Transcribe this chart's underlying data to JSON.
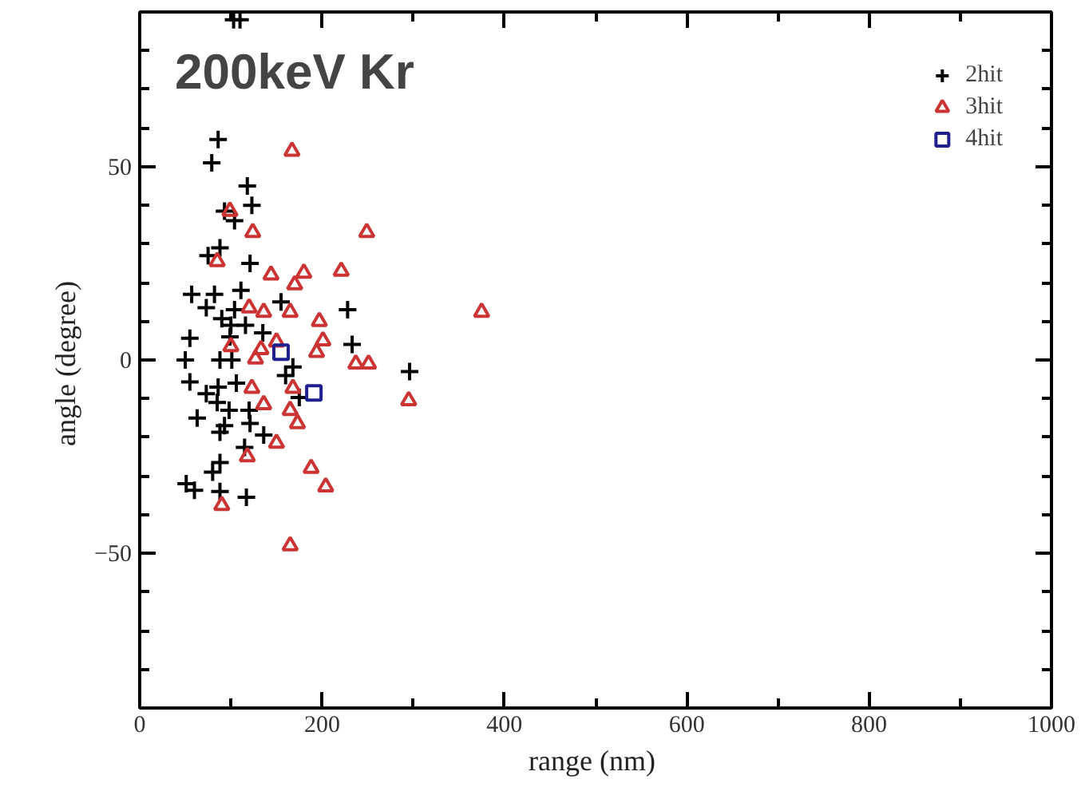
{
  "chart_data": {
    "type": "scatter",
    "title": "200keV Kr",
    "xlabel": "range  (nm)",
    "ylabel": "angle  (degree)",
    "xlim": [
      0,
      1000
    ],
    "ylim": [
      -90,
      90
    ],
    "xticks": [
      0,
      {
        "value": 100,
        "label": null
      },
      200,
      {
        "value": 300,
        "label": null
      },
      400,
      {
        "value": 500,
        "label": null
      },
      600,
      {
        "value": 700,
        "label": null
      },
      800,
      {
        "value": 900,
        "label": null
      },
      1000
    ],
    "yticks": [
      {
        "value": -80,
        "label": null
      },
      {
        "value": -70,
        "label": null
      },
      {
        "value": -60,
        "label": null
      },
      {
        "value": -50,
        "label": "−50"
      },
      {
        "value": -40,
        "label": null
      },
      {
        "value": -30,
        "label": null
      },
      {
        "value": -20,
        "label": null
      },
      {
        "value": -10,
        "label": null
      },
      0,
      {
        "value": 10,
        "label": null
      },
      {
        "value": 20,
        "label": null
      },
      {
        "value": 30,
        "label": null
      },
      {
        "value": 40,
        "label": null
      },
      50,
      {
        "value": 60,
        "label": null
      },
      {
        "value": 70,
        "label": null
      },
      {
        "value": 80,
        "label": null
      }
    ],
    "grid": false,
    "legend": "top right",
    "series": [
      {
        "name": "2hit",
        "color": "#000000",
        "marker": "cross",
        "x": [
          103,
          110,
          86,
          79,
          118,
          123,
          93,
          104,
          88,
          75,
          121,
          57,
          82,
          111,
          155,
          228,
          73,
          104,
          90,
          100,
          116,
          135,
          99,
          55,
          233,
          50,
          88,
          101,
          168,
          296,
          160,
          55,
          106,
          86,
          73,
          175,
          85,
          98,
          120,
          63,
          93,
          121,
          88,
          136,
          115,
          88,
          80,
          51,
          60,
          88,
          117
        ],
        "values": [
          88,
          88,
          57,
          51,
          45,
          40,
          38.5,
          36,
          29,
          27,
          25,
          17,
          17,
          18,
          15,
          13,
          13.5,
          13,
          10.7,
          9,
          9,
          7,
          6,
          5.6,
          4,
          0,
          0,
          0,
          -1.8,
          -3,
          -4,
          -5.7,
          -6,
          -7,
          -8.7,
          -9.7,
          -11,
          -13,
          -13,
          -15,
          -17,
          -16.4,
          -18.7,
          -19.4,
          -22.6,
          -26.5,
          -29,
          -32,
          -33.7,
          -34,
          -35.5
        ]
      },
      {
        "name": "3hit",
        "color": "#cc3333",
        "marker": "triangle",
        "x": [
          167,
          99,
          124,
          249,
          85,
          144,
          180,
          221,
          170,
          375,
          120,
          136,
          165,
          197,
          100,
          201,
          194,
          133,
          150,
          127,
          237,
          251,
          123,
          168,
          136,
          295,
          165,
          173,
          150,
          118,
          188,
          204,
          90,
          165
        ],
        "values": [
          54,
          38.5,
          33,
          33,
          25.5,
          22,
          22.5,
          23,
          19.5,
          12.4,
          13.5,
          12.4,
          12.4,
          10,
          3.5,
          5,
          2,
          2.7,
          4.7,
          0.3,
          -1,
          -1,
          -7.3,
          -7.3,
          -11.5,
          -10.5,
          -13,
          -16.4,
          -21.5,
          -25,
          -28,
          -32.8,
          -37.6,
          -48
        ]
      },
      {
        "name": "4hit",
        "color": "#1f1f8f",
        "marker": "square",
        "x": [
          155,
          191
        ],
        "values": [
          2,
          -8.5
        ]
      }
    ]
  }
}
